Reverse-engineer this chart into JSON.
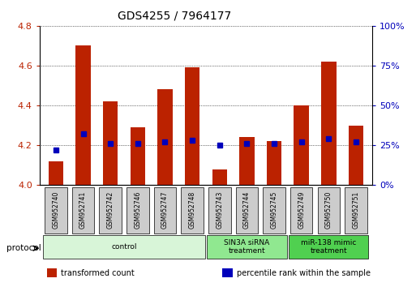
{
  "title": "GDS4255 / 7964177",
  "samples": [
    "GSM952740",
    "GSM952741",
    "GSM952742",
    "GSM952746",
    "GSM952747",
    "GSM952748",
    "GSM952743",
    "GSM952744",
    "GSM952745",
    "GSM952749",
    "GSM952750",
    "GSM952751"
  ],
  "transformed_count": [
    4.12,
    4.7,
    4.42,
    4.29,
    4.48,
    4.59,
    4.08,
    4.24,
    4.22,
    4.4,
    4.62,
    4.3
  ],
  "percentile_rank": [
    22,
    32,
    26,
    26,
    27,
    28,
    25,
    26,
    26,
    27,
    29,
    27
  ],
  "ylim_left": [
    4.0,
    4.8
  ],
  "ylim_right": [
    0,
    100
  ],
  "yticks_left": [
    4.0,
    4.2,
    4.4,
    4.6,
    4.8
  ],
  "yticks_right": [
    0,
    25,
    50,
    75,
    100
  ],
  "ytick_labels_right": [
    "0%",
    "25%",
    "50%",
    "75%",
    "100%"
  ],
  "groups": [
    {
      "label": "control",
      "indices": [
        0,
        1,
        2,
        3,
        4,
        5
      ],
      "color": "#d8f5d8"
    },
    {
      "label": "SIN3A siRNA\ntreatment",
      "indices": [
        6,
        7,
        8
      ],
      "color": "#90e890"
    },
    {
      "label": "miR-138 mimic\ntreatment",
      "indices": [
        9,
        10,
        11
      ],
      "color": "#50d050"
    }
  ],
  "bar_color": "#bb2200",
  "dot_color": "#0000bb",
  "bar_width": 0.55,
  "sample_box_color": "#cccccc",
  "protocol_label": "protocol",
  "legend_items": [
    {
      "label": "transformed count",
      "color": "#bb2200"
    },
    {
      "label": "percentile rank within the sample",
      "color": "#0000bb"
    }
  ]
}
